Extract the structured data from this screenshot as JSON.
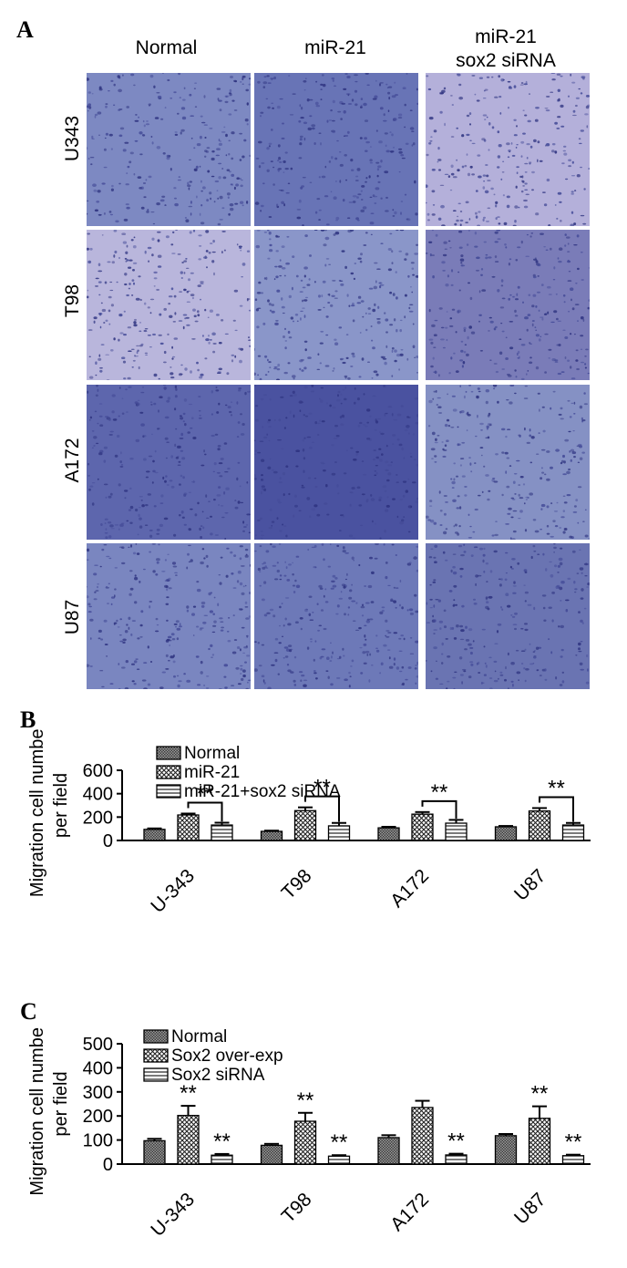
{
  "panel_a": {
    "letter": "A",
    "columns": [
      "Normal",
      "miR-21",
      "miR-21",
      "sox2 siRNA"
    ],
    "rows": [
      "U343",
      "T98",
      "A172",
      "U87"
    ],
    "tint_colors": [
      "#7f8cc4",
      "#6d78b8",
      "#a9a6d6",
      "#b9b4dc",
      "#5f68ad",
      "#4a52a0"
    ]
  },
  "chart_data": [
    {
      "type": "bar",
      "letter": "B",
      "categories": [
        "U-343",
        "T98",
        "A172",
        "U87"
      ],
      "series": [
        {
          "name": "Normal",
          "values": [
            95,
            78,
            108,
            117
          ],
          "errors": [
            8,
            6,
            9,
            7
          ]
        },
        {
          "name": "miR-21",
          "values": [
            218,
            255,
            225,
            252
          ],
          "errors": [
            12,
            28,
            18,
            25
          ]
        },
        {
          "name": "miR-21+sox2 siRNA",
          "values": [
            132,
            125,
            148,
            132
          ],
          "errors": [
            20,
            25,
            28,
            18
          ]
        }
      ],
      "ylabel": "Migration cell numbers per field",
      "ylabel_lines": [
        "Migration cell numbers",
        "per field"
      ],
      "ylim": [
        0,
        600
      ],
      "yticks": [
        0,
        200,
        400,
        600
      ],
      "annotations": [
        "**",
        "**",
        "**",
        "**"
      ],
      "legend": "top-left"
    },
    {
      "type": "bar",
      "letter": "C",
      "categories": [
        "U-343",
        "T98",
        "A172",
        "U87"
      ],
      "series": [
        {
          "name": "Normal",
          "values": [
            97,
            78,
            110,
            118
          ],
          "errors": [
            8,
            6,
            10,
            7
          ]
        },
        {
          "name": "Sox2 over-exp",
          "values": [
            202,
            178,
            235,
            190
          ],
          "errors": [
            40,
            35,
            28,
            50
          ]
        },
        {
          "name": "Sox2 siRNA",
          "values": [
            37,
            33,
            38,
            35
          ],
          "errors": [
            5,
            4,
            5,
            4
          ]
        }
      ],
      "ylabel": "Migration cell numbers per field",
      "ylabel_lines": [
        "Migration cell numbers",
        "per field"
      ],
      "ylim": [
        0,
        500
      ],
      "yticks": [
        0,
        100,
        200,
        300,
        400,
        500
      ],
      "annotations": [
        "**",
        "**",
        "**",
        "**",
        "**",
        "**",
        "**"
      ],
      "legend": "top-left"
    }
  ]
}
